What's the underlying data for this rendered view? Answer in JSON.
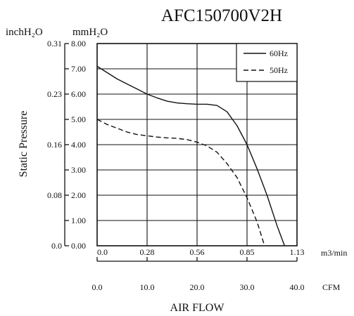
{
  "chart_data": {
    "type": "line",
    "title": "AFC150700V2H",
    "left_unit_label": "inchH₂O",
    "right_unit_label": "mmH₂O",
    "ylabel": "Static Pressure",
    "xlabel": "AIR FLOW",
    "xlim_cfm": [
      0,
      40
    ],
    "ylim": [
      0,
      8
    ],
    "grid": true,
    "legend_position": "top-right",
    "y_ticks_mm": [
      "0.00",
      "1.00",
      "2.00",
      "3.00",
      "4.00",
      "5.00",
      "6.00",
      "7.00",
      "8.00"
    ],
    "y_ticks_inch": [
      {
        "mm": 0,
        "label": "0.0"
      },
      {
        "mm": 2,
        "label": "0.08"
      },
      {
        "mm": 4,
        "label": "0.16"
      },
      {
        "mm": 6,
        "label": "0.23"
      },
      {
        "mm": 8,
        "label": "0.31"
      }
    ],
    "x_ticks_m3": [
      {
        "cfm": 0,
        "label": "0.0"
      },
      {
        "cfm": 10,
        "label": "0.28"
      },
      {
        "cfm": 20,
        "label": "0.56"
      },
      {
        "cfm": 30,
        "label": "0.85"
      },
      {
        "cfm": 40,
        "label": "1.13"
      }
    ],
    "x_unit_m3": "m3/min",
    "x_ticks_cfm": [
      "0.0",
      "10.0",
      "20.0",
      "30.0",
      "40.0"
    ],
    "x_unit_cfm": "CFM",
    "series": [
      {
        "name": "60Hz",
        "style": "solid",
        "x": [
          0,
          2,
          4,
          6,
          8,
          10,
          12,
          14,
          16,
          18,
          20,
          22,
          24,
          26,
          28,
          30,
          32,
          34,
          36,
          37.5
        ],
        "y": [
          7.1,
          6.85,
          6.6,
          6.4,
          6.2,
          6.0,
          5.85,
          5.72,
          5.65,
          5.62,
          5.6,
          5.6,
          5.55,
          5.3,
          4.75,
          4.0,
          3.05,
          2.0,
          0.8,
          0.0
        ]
      },
      {
        "name": "50Hz",
        "style": "dashed",
        "x": [
          0,
          2,
          4,
          6,
          8,
          10,
          12,
          14,
          16,
          18,
          20,
          22,
          24,
          26,
          28,
          30,
          32,
          33.5
        ],
        "y": [
          5.0,
          4.8,
          4.65,
          4.5,
          4.4,
          4.35,
          4.3,
          4.27,
          4.25,
          4.2,
          4.1,
          3.95,
          3.7,
          3.25,
          2.7,
          1.9,
          0.95,
          0.0
        ]
      }
    ]
  },
  "colors": {
    "line": "#111111",
    "grid": "#111111",
    "background": "#ffffff"
  }
}
